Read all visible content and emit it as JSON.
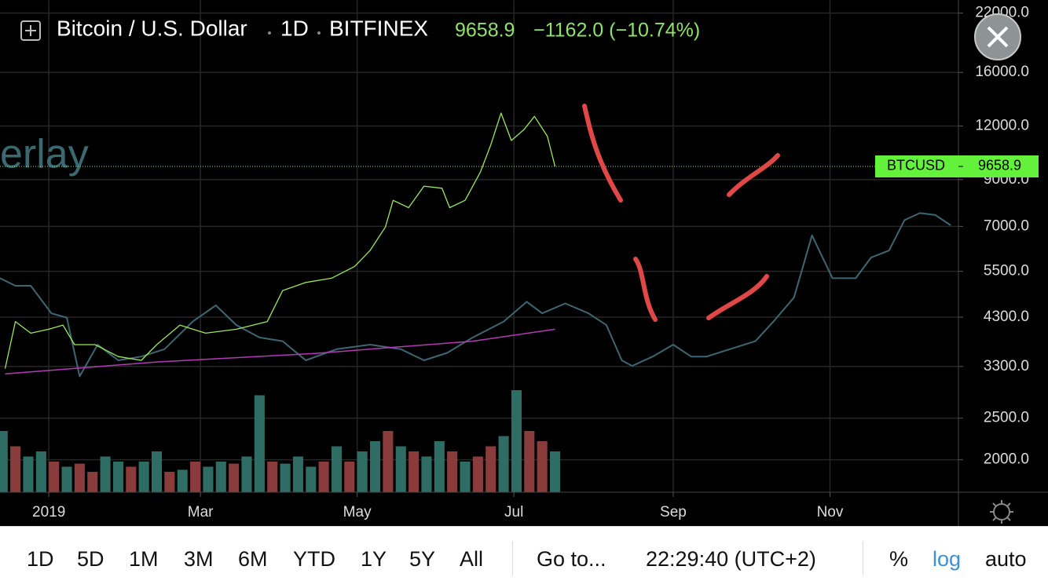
{
  "chart_data": {
    "type": "line",
    "title": "Bitcoin / U.S. Dollar",
    "interval": "1D",
    "exchange": "BITFINEX",
    "change_label": "−1162.0 (−10.74%)",
    "overlay_label": "erlay",
    "log_scale": true,
    "grid": true,
    "xlim": [
      -19,
      354
    ],
    "xticks": [
      {
        "value": 0,
        "label": "2019"
      },
      {
        "value": 59,
        "label": "Mar"
      },
      {
        "value": 120,
        "label": "May"
      },
      {
        "value": 181,
        "label": "Jul"
      },
      {
        "value": 243,
        "label": "Sep"
      },
      {
        "value": 304,
        "label": "Nov"
      }
    ],
    "ylim": [
      1680,
      23600
    ],
    "yticks": [
      {
        "value": 22000,
        "label": "22000.0"
      },
      {
        "value": 16000,
        "label": "16000.0"
      },
      {
        "value": 12000,
        "label": "12000.0"
      },
      {
        "value": 9000,
        "label": "9000.0"
      },
      {
        "value": 7000,
        "label": "7000.0"
      },
      {
        "value": 5500,
        "label": "5500.0"
      },
      {
        "value": 4300,
        "label": "4300.0"
      },
      {
        "value": 3300,
        "label": "3300.0"
      },
      {
        "value": 2500,
        "label": "2500.0"
      },
      {
        "value": 2000,
        "label": "2000.0"
      }
    ],
    "series": [
      {
        "name": "BTCUSD",
        "color": "#9be85a",
        "x": [
          -17,
          -13,
          -7,
          0,
          5.5,
          10,
          18,
          27,
          36,
          42,
          51,
          61,
          73,
          85,
          91,
          100,
          110,
          119,
          125,
          131,
          134,
          140,
          146,
          153,
          156,
          162,
          168,
          172,
          176,
          180,
          185,
          189,
          194,
          197
        ],
        "values": [
          3262,
          4200,
          3945,
          4030,
          4120,
          3710,
          3710,
          3480,
          3410,
          3710,
          4120,
          3945,
          4030,
          4200,
          4960,
          5180,
          5300,
          5645,
          6150,
          6975,
          8050,
          7740,
          8690,
          8590,
          7740,
          8050,
          9380,
          10840,
          12860,
          11100,
          11780,
          12640,
          11360,
          9658.9
        ]
      },
      {
        "color": "#3e6670",
        "x": [
          -19,
          -13,
          -7,
          1,
          7,
          12,
          19,
          27,
          36,
          45,
          56,
          65,
          73,
          82,
          91,
          100,
          112,
          125,
          137,
          146,
          155,
          165,
          177,
          186,
          192,
          201,
          210,
          217,
          223,
          227,
          235,
          243,
          250,
          256,
          265,
          275,
          282,
          290,
          297,
          305,
          314,
          320,
          327,
          333,
          339,
          345,
          351
        ],
        "values": [
          5300,
          5090,
          5090,
          4390,
          4290,
          3130,
          3710,
          3410,
          3480,
          3620,
          4200,
          4580,
          4120,
          3855,
          3780,
          3410,
          3620,
          3710,
          3620,
          3410,
          3550,
          3855,
          4200,
          4670,
          4390,
          4630,
          4390,
          4120,
          3410,
          3310,
          3480,
          3710,
          3480,
          3480,
          3620,
          3780,
          4200,
          4780,
          6670,
          5300,
          5300,
          5920,
          6150,
          7240,
          7520,
          7440,
          7040
        ]
      },
      {
        "color": "#b23bb5",
        "x": [
          -17,
          42,
          104,
          165,
          197
        ],
        "values": [
          3170,
          3380,
          3540,
          3780,
          4030
        ]
      }
    ],
    "volume": {
      "x": [
        -18,
        -13,
        -8,
        -3,
        2,
        7,
        12,
        17,
        22,
        27,
        32,
        37,
        42,
        47,
        52,
        57,
        62,
        67,
        72,
        77,
        82,
        87,
        92,
        97,
        102,
        107,
        112,
        117,
        122,
        127,
        132,
        137,
        142,
        147,
        152,
        157,
        162,
        167,
        172,
        177,
        182,
        187,
        192,
        197
      ],
      "values": [
        60,
        45,
        35,
        40,
        30,
        25,
        28,
        20,
        35,
        30,
        25,
        30,
        40,
        20,
        22,
        30,
        25,
        30,
        28,
        35,
        95,
        30,
        28,
        35,
        25,
        30,
        45,
        30,
        40,
        50,
        60,
        45,
        40,
        35,
        50,
        40,
        30,
        35,
        45,
        55,
        100,
        60,
        50,
        40
      ],
      "colors": [
        "#2f6d64",
        "#8a3b3b",
        "#2f6d64",
        "#2f6d64",
        "#8a3b3b",
        "#2f6d64",
        "#8a3b3b",
        "#8a3b3b",
        "#2f6d64",
        "#2f6d64",
        "#8a3b3b",
        "#2f6d64",
        "#2f6d64",
        "#8a3b3b",
        "#2f6d64",
        "#8a3b3b",
        "#2f6d64",
        "#2f6d64",
        "#8a3b3b",
        "#2f6d64",
        "#2f6d64",
        "#8a3b3b",
        "#2f6d64",
        "#2f6d64",
        "#2f6d64",
        "#8a3b3b",
        "#2f6d64",
        "#8a3b3b",
        "#2f6d64",
        "#2f6d64",
        "#8a3b3b",
        "#2f6d64",
        "#8a3b3b",
        "#2f6d64",
        "#2f6d64",
        "#8a3b3b",
        "#2f6d64",
        "#8a3b3b",
        "#8a3b3b",
        "#2f6d64",
        "#2f6d64",
        "#8a3b3b",
        "#8a3b3b",
        "#2f6d64"
      ]
    }
  },
  "toolbar": {
    "ranges": [
      "1D",
      "5D",
      "1M",
      "3M",
      "6M",
      "YTD",
      "1Y",
      "5Y",
      "All"
    ],
    "goto": "Go to...",
    "time": "22:29:40 (UTC+2)",
    "options": [
      "%",
      "log",
      "auto"
    ]
  }
}
